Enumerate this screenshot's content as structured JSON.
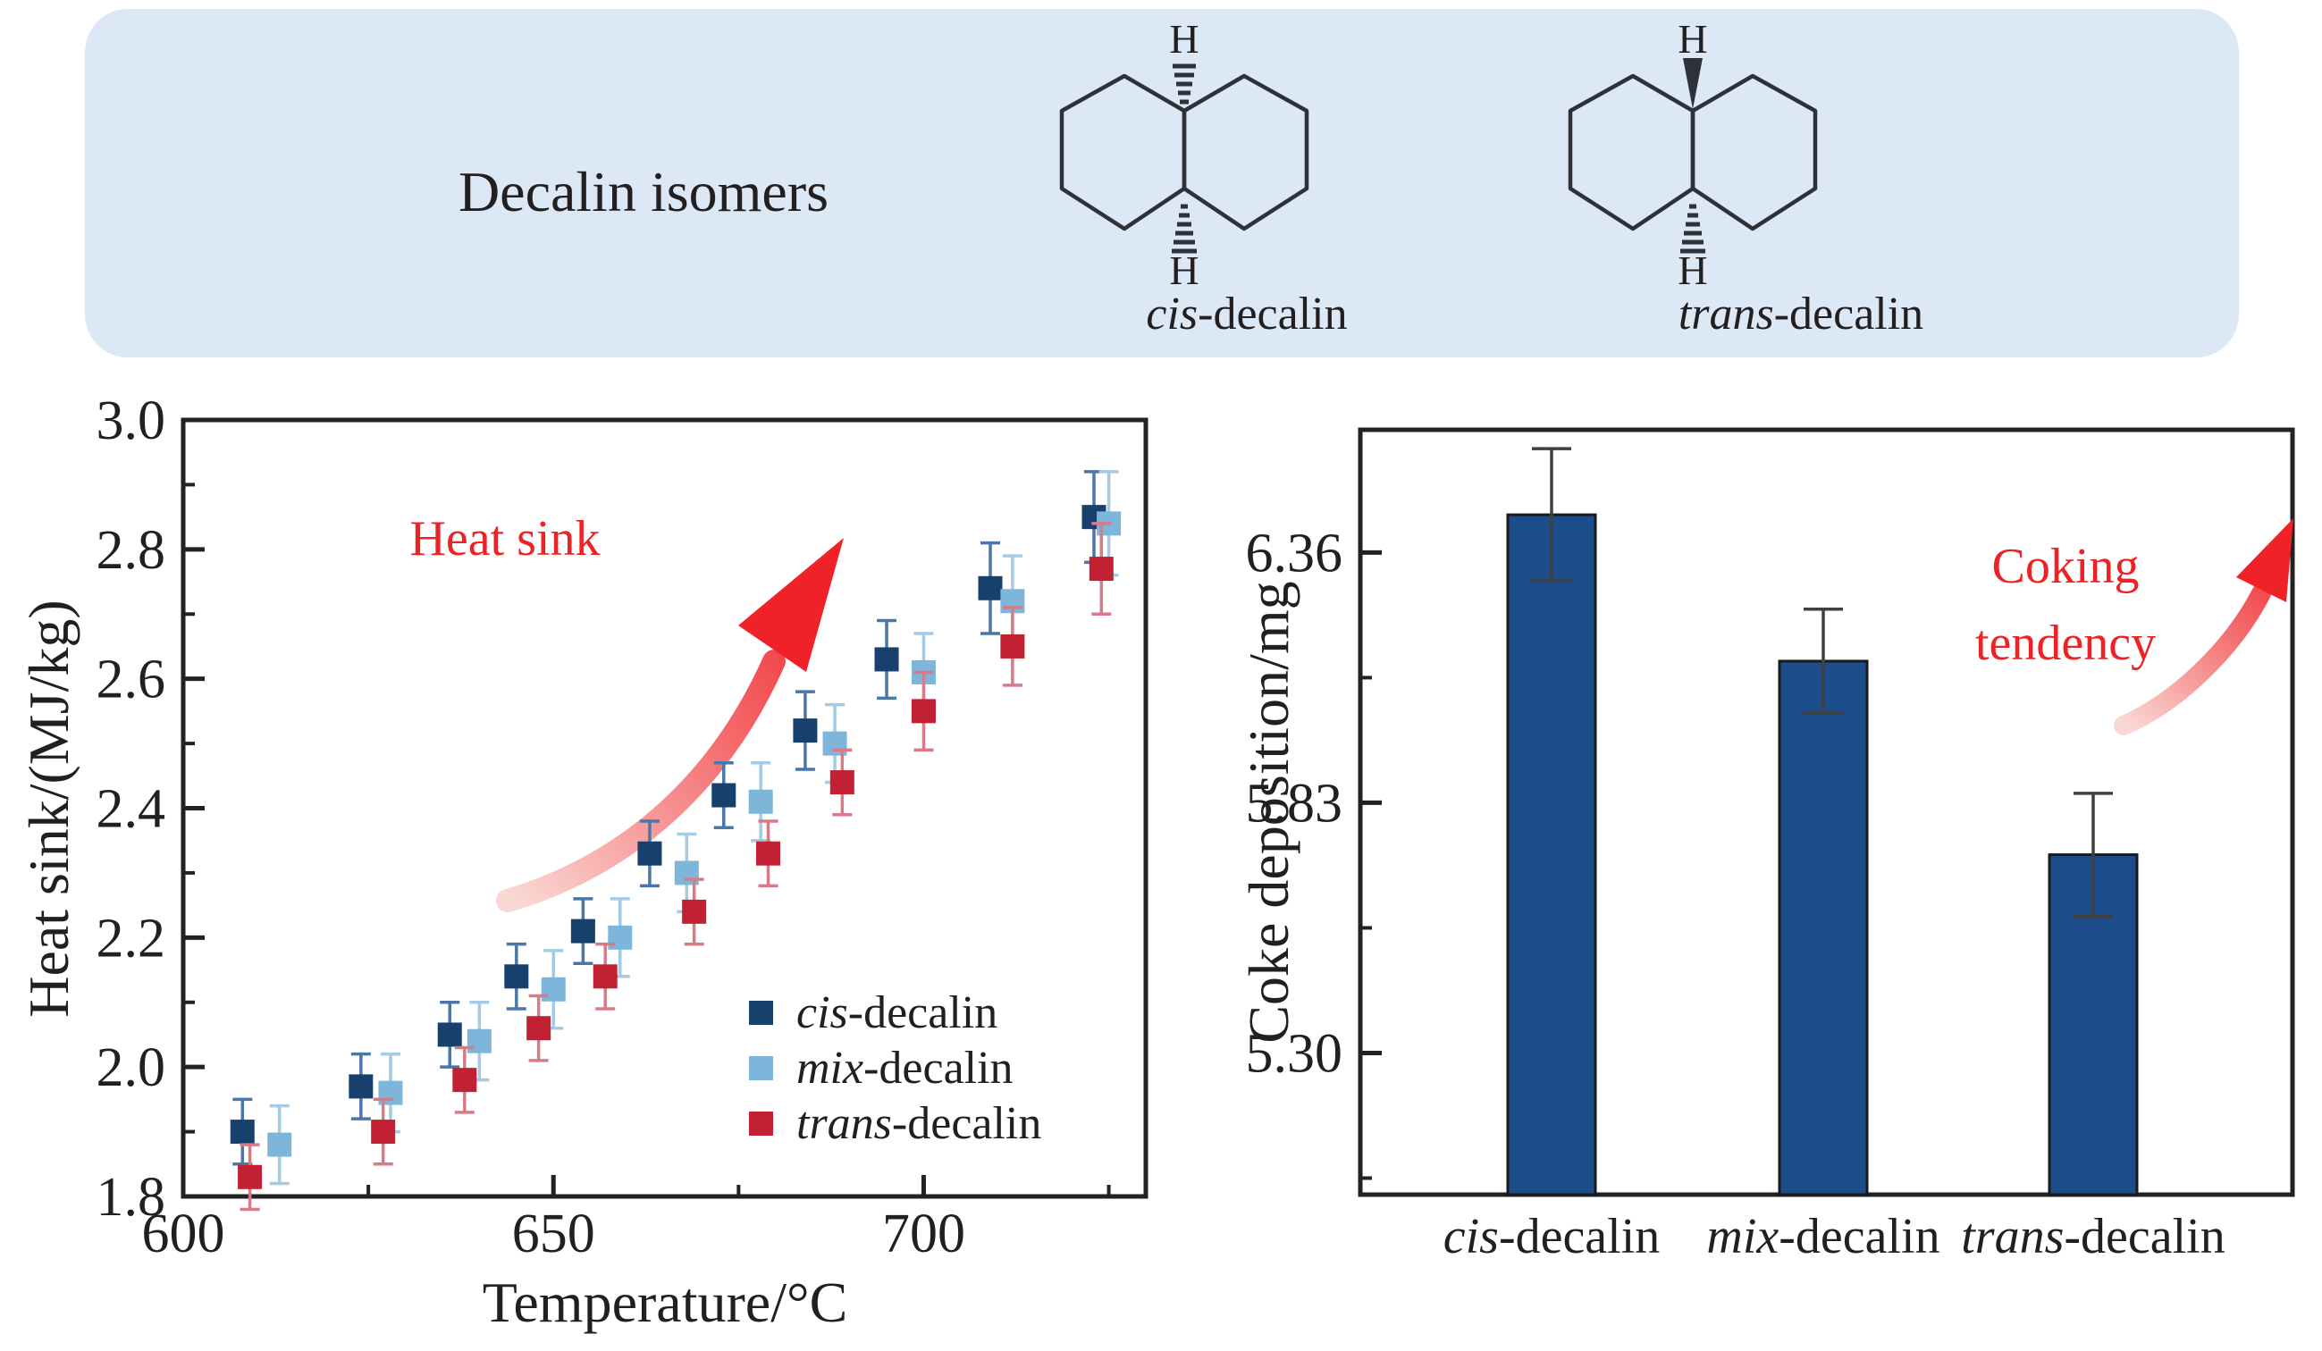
{
  "panel": {
    "title": "Decalin isomers",
    "bg_color": "#dce8f5",
    "molecules": [
      {
        "name": "cis-decalin",
        "prefix": "cis",
        "suffix": "-decalin",
        "h_top": "H",
        "h_bottom": "H",
        "top_bond": "hash",
        "bottom_bond": "hash"
      },
      {
        "name": "trans-decalin",
        "prefix": "trans",
        "suffix": "-decalin",
        "h_top": "H",
        "h_bottom": "H",
        "top_bond": "wedge",
        "bottom_bond": "hash"
      }
    ]
  },
  "annotations": {
    "heat_sink": "Heat sink",
    "coking_line1": "Coking",
    "coking_line2": "tendency",
    "accent_color": "#ee2224"
  },
  "chart_data": [
    {
      "type": "scatter",
      "xlabel": "Temperature/°C",
      "ylabel": "Heat sink/(MJ/kg)",
      "xlim": [
        600,
        730
      ],
      "ylim": [
        1.8,
        3.0
      ],
      "x_ticks": {
        "values": [
          600,
          650,
          700
        ],
        "labels": [
          "600",
          "650",
          "700"
        ]
      },
      "x_minor_ticks": [
        625,
        675,
        725
      ],
      "y_ticks": {
        "values": [
          1.8,
          2.0,
          2.2,
          2.4,
          2.6,
          2.8,
          3.0
        ],
        "labels": [
          "1.8",
          "2.0",
          "2.2",
          "2.4",
          "2.6",
          "2.8",
          "3.0"
        ]
      },
      "y_minor_ticks": [
        1.9,
        2.1,
        2.3,
        2.5,
        2.7,
        2.9
      ],
      "grid": false,
      "legend_position": "lower right",
      "series": [
        {
          "name": "cis-decalin",
          "prefix": "cis",
          "suffix": "-decalin",
          "color": "#17406d",
          "err_color": "#4a76a8",
          "x": [
            608,
            624,
            636,
            645,
            654,
            663,
            673,
            684,
            695,
            709,
            723
          ],
          "y": [
            1.9,
            1.97,
            2.05,
            2.14,
            2.21,
            2.33,
            2.42,
            2.52,
            2.63,
            2.74,
            2.85
          ],
          "err": [
            0.05,
            0.05,
            0.05,
            0.05,
            0.05,
            0.05,
            0.05,
            0.06,
            0.06,
            0.07,
            0.07
          ]
        },
        {
          "name": "mix-decalin",
          "prefix": "mix",
          "suffix": "-decalin",
          "color": "#7eb6db",
          "err_color": "#a3cbe5",
          "x": [
            613,
            628,
            640,
            650,
            659,
            668,
            678,
            688,
            700,
            712,
            725
          ],
          "y": [
            1.88,
            1.96,
            2.04,
            2.12,
            2.2,
            2.3,
            2.41,
            2.5,
            2.61,
            2.72,
            2.84
          ],
          "err": [
            0.06,
            0.06,
            0.06,
            0.06,
            0.06,
            0.06,
            0.06,
            0.06,
            0.06,
            0.07,
            0.08
          ]
        },
        {
          "name": "trans-decalin",
          "prefix": "trans",
          "suffix": "-decalin",
          "color": "#c22133",
          "err_color": "#d77b87",
          "x": [
            609,
            627,
            638,
            648,
            657,
            669,
            679,
            689,
            700,
            712,
            724
          ],
          "y": [
            1.83,
            1.9,
            1.98,
            2.06,
            2.14,
            2.24,
            2.33,
            2.44,
            2.55,
            2.65,
            2.77
          ],
          "err": [
            0.05,
            0.05,
            0.05,
            0.05,
            0.05,
            0.05,
            0.05,
            0.05,
            0.06,
            0.06,
            0.07
          ]
        }
      ]
    },
    {
      "type": "bar",
      "ylabel": "Coke deposition/mg",
      "ylim": [
        5.0,
        6.62
      ],
      "y_ticks": {
        "values": [
          5.3,
          5.83,
          6.36
        ],
        "labels": [
          "5.30",
          "5.83",
          "6.36"
        ]
      },
      "y_minor_ticks": [
        5.035,
        5.565,
        6.095
      ],
      "categories": [
        {
          "name": "cis-decalin",
          "prefix": "cis",
          "suffix": "-decalin"
        },
        {
          "name": "mix-decalin",
          "prefix": "mix",
          "suffix": "-decalin"
        },
        {
          "name": "trans-decalin",
          "prefix": "trans",
          "suffix": "-decalin"
        }
      ],
      "values": [
        6.44,
        6.13,
        5.72
      ],
      "errors": [
        0.14,
        0.11,
        0.13
      ],
      "bar_color": "#1c4d8a",
      "bar_edge_color": "#1a1a1a",
      "error_color": "#404040"
    }
  ]
}
